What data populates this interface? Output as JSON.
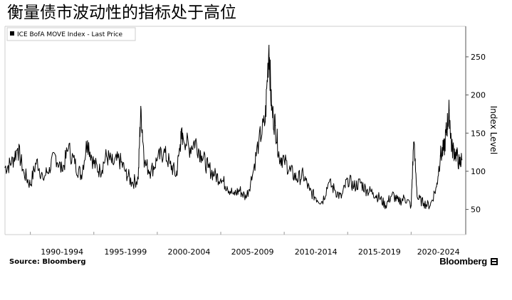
{
  "title": "衡量债市波动性的指标处于高位",
  "source": "Source: Bloomberg",
  "brand": "Bloomberg",
  "chart_data": {
    "type": "line",
    "legend": "ICE BofA MOVE Index - Last Price",
    "legend_position": "top-left",
    "ylabel": "Index Level",
    "y_axis_side": "right",
    "ylim": [
      17,
      290
    ],
    "yticks": [
      50,
      100,
      150,
      200,
      250
    ],
    "grid": false,
    "line_color": "#000000",
    "x_period_labels": [
      "1990-1994",
      "1995-1999",
      "2000-2004",
      "2005-2009",
      "2010-2014",
      "2015-2019",
      "2020-2024"
    ],
    "series": [
      {
        "name": "ICE BofA MOVE Index - Last Price",
        "x": [
          1988.0,
          1988.5,
          1989.0,
          1989.5,
          1990.0,
          1990.5,
          1991.0,
          1991.5,
          1992.0,
          1992.5,
          1993.0,
          1993.5,
          1994.0,
          1994.5,
          1995.0,
          1995.5,
          1996.0,
          1996.5,
          1997.0,
          1997.5,
          1998.0,
          1998.5,
          1998.7,
          1999.0,
          1999.5,
          2000.0,
          2000.5,
          2001.0,
          2001.5,
          2001.8,
          2002.0,
          2002.5,
          2003.0,
          2003.5,
          2004.0,
          2004.5,
          2005.0,
          2005.5,
          2006.0,
          2006.5,
          2007.0,
          2007.5,
          2008.0,
          2008.5,
          2008.8,
          2009.0,
          2009.3,
          2009.6,
          2010.0,
          2010.5,
          2011.0,
          2011.5,
          2012.0,
          2012.5,
          2013.0,
          2013.5,
          2014.0,
          2014.5,
          2015.0,
          2015.5,
          2016.0,
          2016.5,
          2017.0,
          2017.5,
          2018.0,
          2018.5,
          2019.0,
          2019.5,
          2020.0,
          2020.2,
          2020.5,
          2021.0,
          2021.5,
          2022.0,
          2022.3,
          2022.6,
          2022.8,
          2023.0,
          2023.2,
          2023.5,
          2023.8,
          2024.0
        ],
        "values": [
          105,
          110,
          130,
          98,
          82,
          115,
          90,
          105,
          120,
          100,
          130,
          110,
          95,
          140,
          110,
          100,
          120,
          110,
          115,
          100,
          85,
          90,
          185,
          110,
          100,
          115,
          125,
          110,
          95,
          135,
          150,
          130,
          140,
          120,
          105,
          95,
          90,
          80,
          70,
          75,
          65,
          95,
          140,
          165,
          265,
          180,
          160,
          120,
          115,
          100,
          90,
          95,
          75,
          65,
          60,
          85,
          75,
          65,
          90,
          80,
          85,
          75,
          72,
          65,
          55,
          70,
          60,
          65,
          55,
          138,
          65,
          58,
          55,
          80,
          120,
          130,
          155,
          180,
          130,
          125,
          110,
          115
        ]
      }
    ]
  }
}
